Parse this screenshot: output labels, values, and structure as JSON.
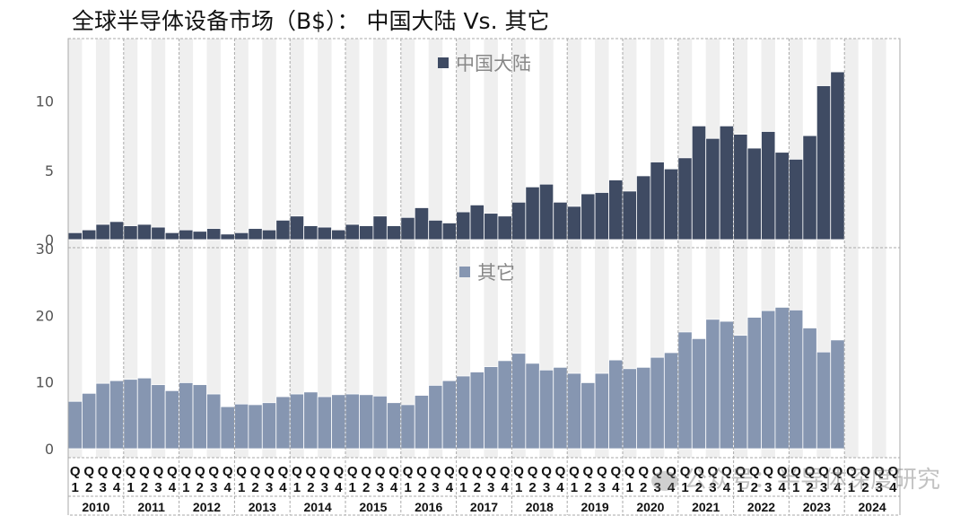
{
  "title": "全球半导体设备市场（B$）： 中国大陆 Vs. 其它",
  "watermark": "公众号：半导体深度研究",
  "colors": {
    "china": "#3f4b63",
    "other": "#8696b1",
    "band": "#efefef"
  },
  "chart_data": [
    {
      "type": "bar",
      "panel": "top",
      "series": [
        {
          "name": "中国大陆",
          "color": "#3f4b63",
          "values": [
            0.5,
            0.7,
            1.1,
            1.3,
            1.0,
            1.1,
            0.9,
            0.5,
            0.7,
            0.6,
            0.8,
            0.4,
            0.5,
            0.8,
            0.7,
            1.4,
            1.7,
            1.0,
            0.9,
            0.7,
            1.1,
            1.0,
            1.7,
            1.0,
            1.6,
            2.3,
            1.4,
            1.2,
            2.0,
            2.5,
            1.9,
            1.7,
            2.7,
            3.8,
            4.0,
            2.7,
            2.4,
            3.3,
            3.4,
            4.3,
            3.5,
            4.6,
            5.6,
            5.1,
            5.9,
            8.2,
            7.3,
            8.2,
            7.6,
            6.6,
            7.8,
            6.3,
            5.8,
            7.5,
            11.1,
            12.1
          ]
        }
      ],
      "ylim": [
        0,
        14.5
      ],
      "yticks": [
        0,
        5,
        10
      ],
      "grid": false,
      "legend": "top-center"
    },
    {
      "type": "bar",
      "panel": "bottom",
      "series": [
        {
          "name": "其它",
          "color": "#8696b1",
          "values": [
            7.1,
            8.3,
            9.8,
            10.2,
            10.4,
            10.6,
            9.6,
            8.7,
            9.9,
            9.6,
            8.2,
            6.3,
            6.7,
            6.6,
            6.9,
            7.8,
            8.2,
            8.5,
            7.8,
            8.1,
            8.2,
            8.1,
            7.9,
            6.9,
            6.6,
            8.0,
            9.5,
            10.2,
            10.9,
            11.5,
            12.3,
            13.2,
            14.3,
            12.8,
            11.8,
            12.2,
            11.3,
            9.9,
            11.3,
            13.3,
            12.0,
            12.2,
            13.7,
            14.4,
            17.5,
            16.5,
            19.4,
            19.1,
            17.0,
            19.7,
            20.7,
            21.2,
            20.8,
            18.1,
            14.5,
            16.3
          ]
        }
      ],
      "ylim": [
        0,
        30
      ],
      "yticks": [
        0,
        10,
        20,
        30
      ],
      "grid": false,
      "legend": "top-center"
    }
  ],
  "x_axis": {
    "quarter_top": [
      "Q",
      "Q",
      "Q",
      "Q"
    ],
    "quarter_bottom": [
      "1",
      "2",
      "3",
      "4"
    ],
    "years": [
      "2010",
      "2011",
      "2012",
      "2013",
      "2014",
      "2015",
      "2016",
      "2017",
      "2018",
      "2019",
      "2020",
      "2021",
      "2022",
      "2023",
      "2024"
    ]
  }
}
